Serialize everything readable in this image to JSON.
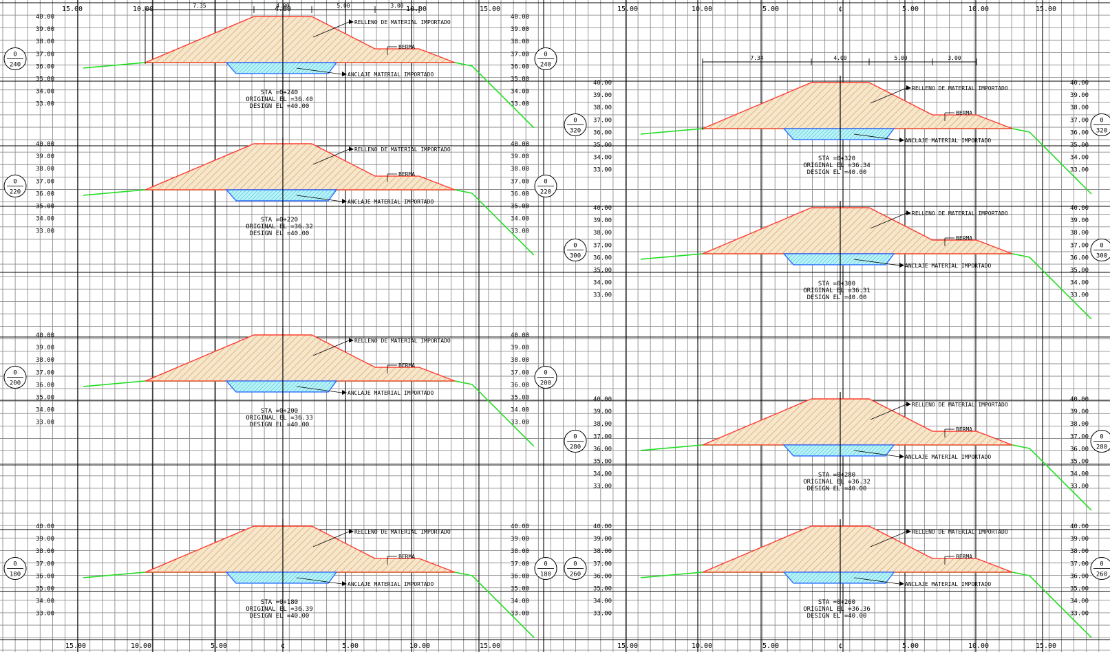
{
  "drawing": {
    "colors": {
      "grid_minor": "#8c8c8c",
      "grid_major": "#000000",
      "fill_outline": "#ff3b30",
      "fill_hatch": "#d49a4e",
      "fill_bg": "#f6e6cc",
      "ground_line": "#22dd22",
      "anchor_outline": "#2a6bff",
      "anchor_hatch": "#19c6d8",
      "anchor_bg": "#bdf1f6",
      "text": "#000000"
    },
    "axis_labels": {
      "left_sheet": [
        "15.00",
        "10.00",
        "5.00",
        "¢",
        "5.00",
        "10.00",
        "15.00"
      ],
      "right_sheet": [
        "15.00",
        "10.00",
        "5.00",
        "¢",
        "5.00",
        "10.00",
        "15.00"
      ],
      "top_left_sheet": [
        "15.00",
        "10.00",
        "4.00",
        "10.00",
        "15.00"
      ],
      "top_right_sheet": [
        "15.00",
        "10.00",
        "5.00",
        "¢",
        "5.00",
        "10.00",
        "15.00"
      ]
    },
    "dimension_labels_left": [
      "7.35",
      "4.00",
      "5.00",
      "3.00"
    ],
    "dimension_labels_right": [
      "7.34",
      "4.00",
      "5.00",
      "3.00"
    ],
    "elevation_labels": [
      "40.00",
      "39.00",
      "38.00",
      "37.00",
      "36.00",
      "35.00",
      "34.00",
      "33.00"
    ],
    "callouts": {
      "fill": "RELLENO DE MATERIAL IMPORTADO",
      "berm": "BERMA",
      "anchor": "ANCLAJE MATERIAL IMPORTADO"
    },
    "sta_prefix": "STA =",
    "orig_prefix": "ORIGINAL EL =",
    "design_prefix": "DESIGN EL =",
    "sections": [
      {
        "sta": "0+240",
        "tag_top": "0",
        "tag_bottom": "240",
        "original_el": "36.40",
        "design_el": "40.00",
        "column": "left",
        "row": 0
      },
      {
        "sta": "0+220",
        "tag_top": "0",
        "tag_bottom": "220",
        "original_el": "36.32",
        "design_el": "40.00",
        "column": "left",
        "row": 1
      },
      {
        "sta": "0+200",
        "tag_top": "0",
        "tag_bottom": "200",
        "original_el": "36.33",
        "design_el": "40.00",
        "column": "left",
        "row": 2
      },
      {
        "sta": "0+180",
        "tag_top": "0",
        "tag_bottom": "180",
        "original_el": "36.39",
        "design_el": "40.00",
        "column": "left",
        "row": 3
      },
      {
        "sta": "0+320",
        "tag_top": "0",
        "tag_bottom": "320",
        "original_el": "36.34",
        "design_el": "40.00",
        "column": "right",
        "row": 0
      },
      {
        "sta": "0+300",
        "tag_top": "0",
        "tag_bottom": "300",
        "original_el": "36.31",
        "design_el": "40.00",
        "column": "right",
        "row": 1
      },
      {
        "sta": "0+280",
        "tag_top": "0",
        "tag_bottom": "280",
        "original_el": "36.32",
        "design_el": "40.00",
        "column": "right",
        "row": 2
      },
      {
        "sta": "0+260",
        "tag_top": "0",
        "tag_bottom": "260",
        "original_el": "36.36",
        "design_el": "40.00",
        "column": "right",
        "row": 3
      }
    ]
  }
}
